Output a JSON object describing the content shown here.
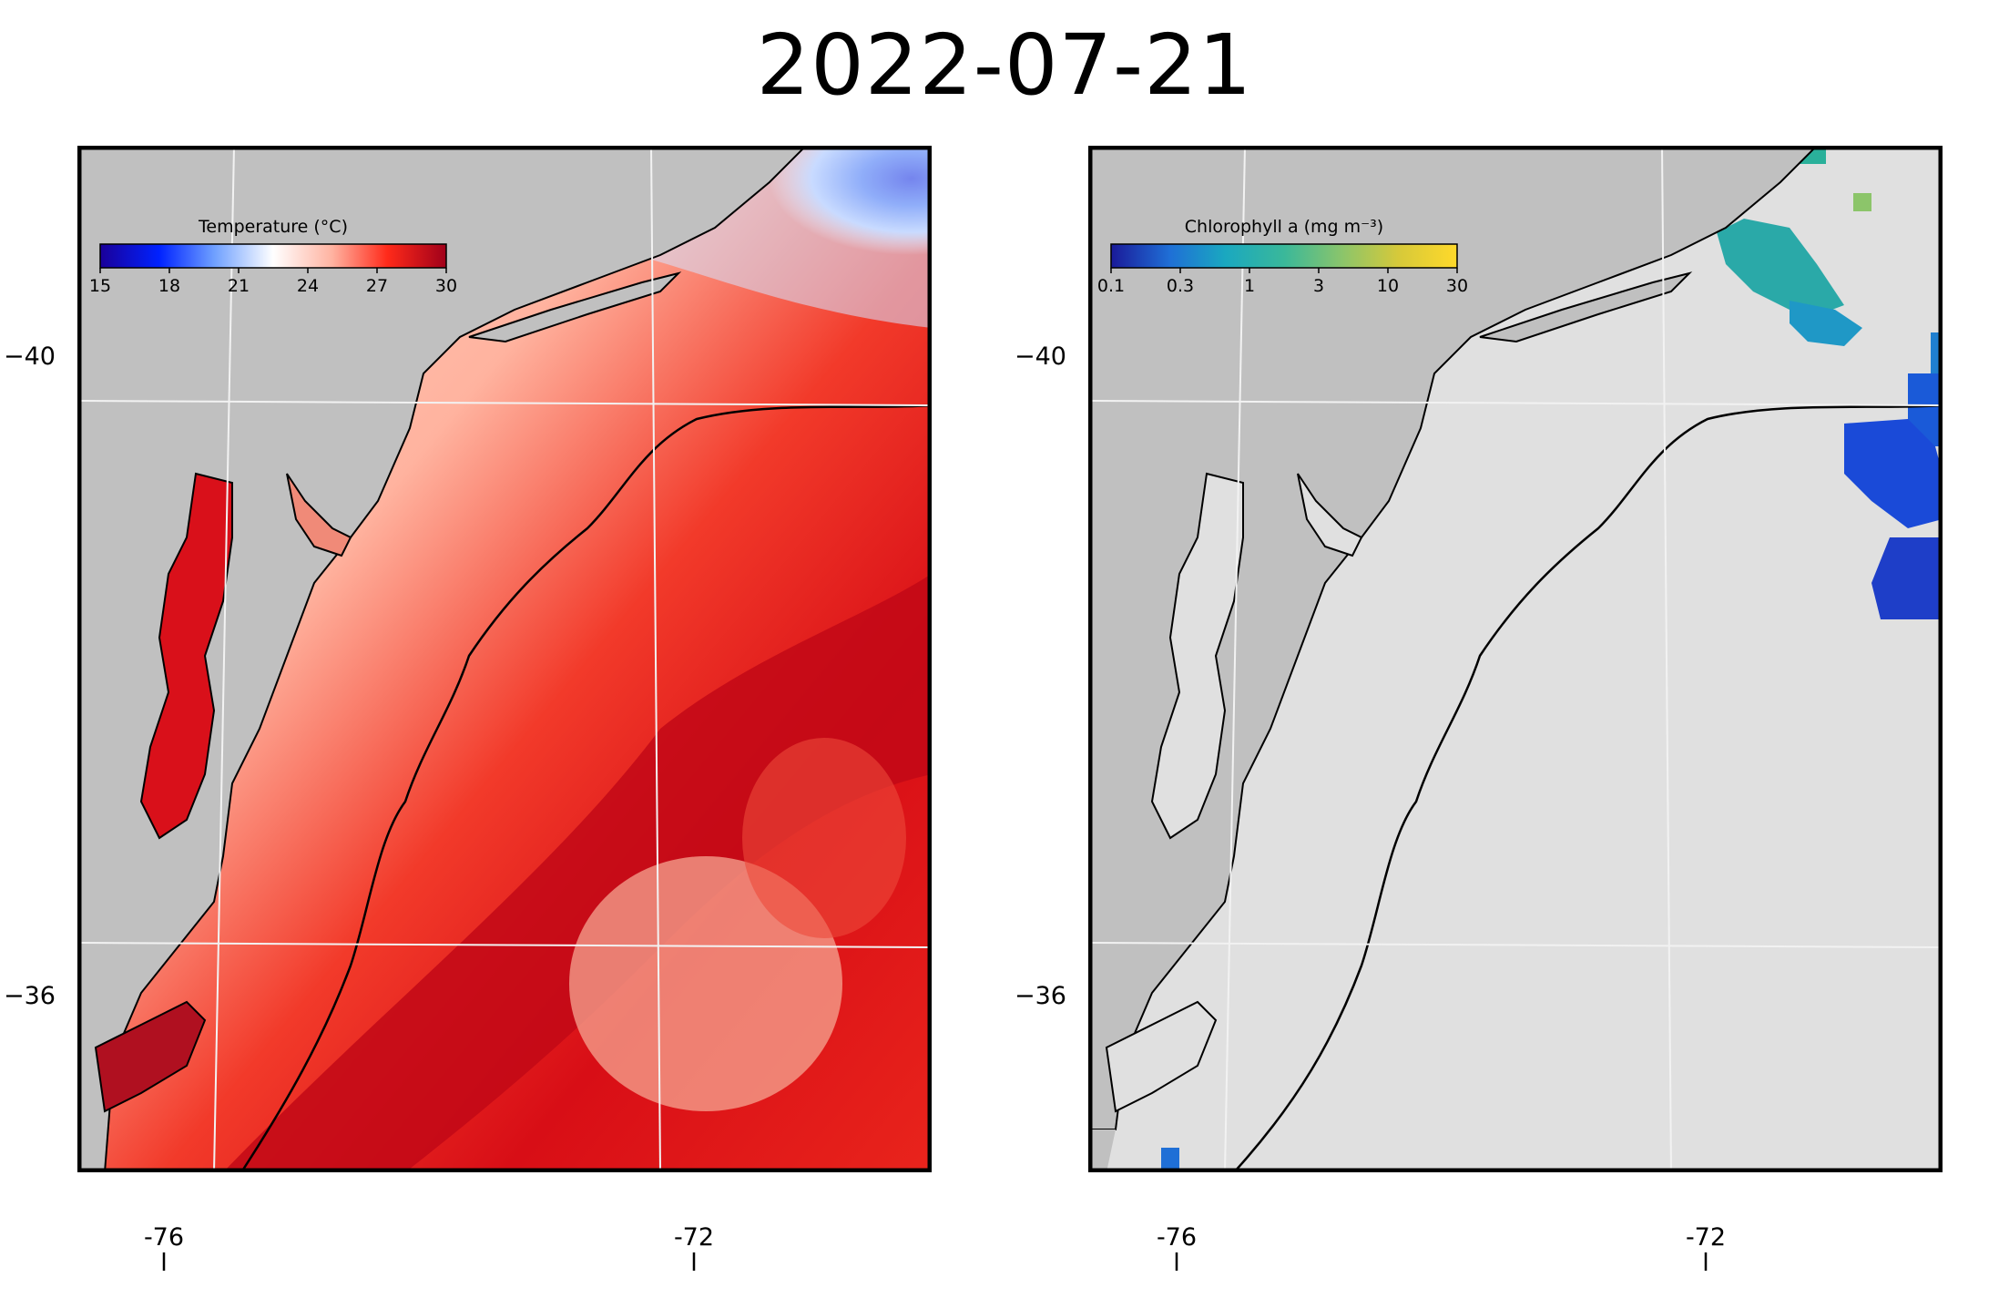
{
  "title": "2022-07-21",
  "colors": {
    "land": "#c0c0c0",
    "no_data": "#e0e0e0",
    "warm": "#e60e0e",
    "cool": "#1a3ee6",
    "grid": "#f2f2f2",
    "coast": "#000000"
  },
  "axes": {
    "lat_ticks": [
      "−40",
      "−36"
    ],
    "lon_ticks": [
      "-76",
      "-72"
    ]
  },
  "panels": [
    {
      "id": "temperature",
      "colorbar": {
        "label": "Temperature (°C)",
        "ticks": [
          "15",
          "18",
          "21",
          "24",
          "27",
          "30"
        ],
        "colormap": [
          "#1a0099",
          "#0022ff",
          "#6fa0ff",
          "#ffffff",
          "#ffb3a1",
          "#ff2a1a",
          "#a0001a"
        ]
      }
    },
    {
      "id": "chlorophyll",
      "colorbar": {
        "label": "Chlorophyll a (mg m⁻³)",
        "ticks": [
          "0.1",
          "0.3",
          "1",
          "3",
          "10",
          "30"
        ],
        "colormap": [
          "#1a1a99",
          "#1f6fd6",
          "#1aa8c0",
          "#3ab89a",
          "#8cc56a",
          "#d6c93a",
          "#ffd92a"
        ]
      }
    }
  ]
}
